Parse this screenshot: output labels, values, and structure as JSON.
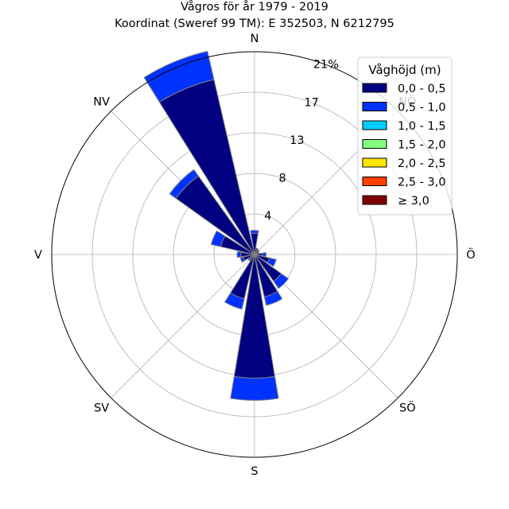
{
  "chart_data": {
    "type": "windrose",
    "title": "Vågros för år 1979 - 2019",
    "subtitle": "Koordinat (Sweref 99 TM): E 352503, N 6212795",
    "directions": [
      "N",
      "NNÖ",
      "NÖ",
      "ÖNÖ",
      "Ö",
      "ÖSÖ",
      "SÖ",
      "SSÖ",
      "S",
      "SSV",
      "SV",
      "VSV",
      "V",
      "VNV",
      "NV",
      "NNV"
    ],
    "compass_labels": [
      "N",
      "NÖ",
      "Ö",
      "SÖ",
      "S",
      "SV",
      "V",
      "NV"
    ],
    "radial_ticks": [
      "4",
      "8",
      "13",
      "17",
      "21%"
    ],
    "radial_tick_values": [
      4.2,
      8.4,
      12.6,
      16.8,
      21
    ],
    "rmax": 21,
    "legend_title": "Våghöjd (m)",
    "legend_position": "top-right",
    "grid": true,
    "series": [
      {
        "name": "0,0 - 0,5",
        "color": "#000080",
        "values": [
          2.2,
          0.6,
          0.5,
          0.4,
          0.8,
          1.6,
          3.4,
          4.5,
          12.8,
          4.7,
          0.6,
          1.2,
          1.4,
          3.6,
          10.0,
          18.6
        ]
      },
      {
        "name": "0,5 - 1,0",
        "color": "#0033ff",
        "values": [
          0.3,
          0.1,
          0.1,
          0.1,
          0.4,
          0.7,
          0.9,
          0.9,
          2.3,
          1.1,
          0.2,
          0.3,
          0.4,
          1.0,
          0.8,
          3.0
        ]
      },
      {
        "name": "1,0 - 1,5",
        "color": "#00ccff",
        "values": [
          0,
          0,
          0,
          0,
          0,
          0,
          0,
          0,
          0,
          0,
          0,
          0,
          0,
          0,
          0,
          0
        ]
      },
      {
        "name": "1,5 - 2,0",
        "color": "#80ff80",
        "values": [
          0,
          0,
          0,
          0,
          0,
          0,
          0,
          0,
          0,
          0,
          0,
          0,
          0,
          0,
          0,
          0
        ]
      },
      {
        "name": "2,0 - 2,5",
        "color": "#ffe600",
        "values": [
          0,
          0,
          0,
          0,
          0,
          0,
          0,
          0,
          0,
          0,
          0,
          0,
          0,
          0,
          0,
          0
        ]
      },
      {
        "name": "2,5 - 3,0",
        "color": "#ff4000",
        "values": [
          0,
          0,
          0,
          0,
          0,
          0,
          0,
          0,
          0,
          0,
          0,
          0,
          0,
          0,
          0,
          0
        ]
      },
      {
        "name": "≥ 3,0",
        "color": "#800000",
        "values": [
          0,
          0,
          0,
          0,
          0,
          0,
          0,
          0,
          0,
          0,
          0,
          0,
          0,
          0,
          0,
          0
        ]
      }
    ]
  }
}
